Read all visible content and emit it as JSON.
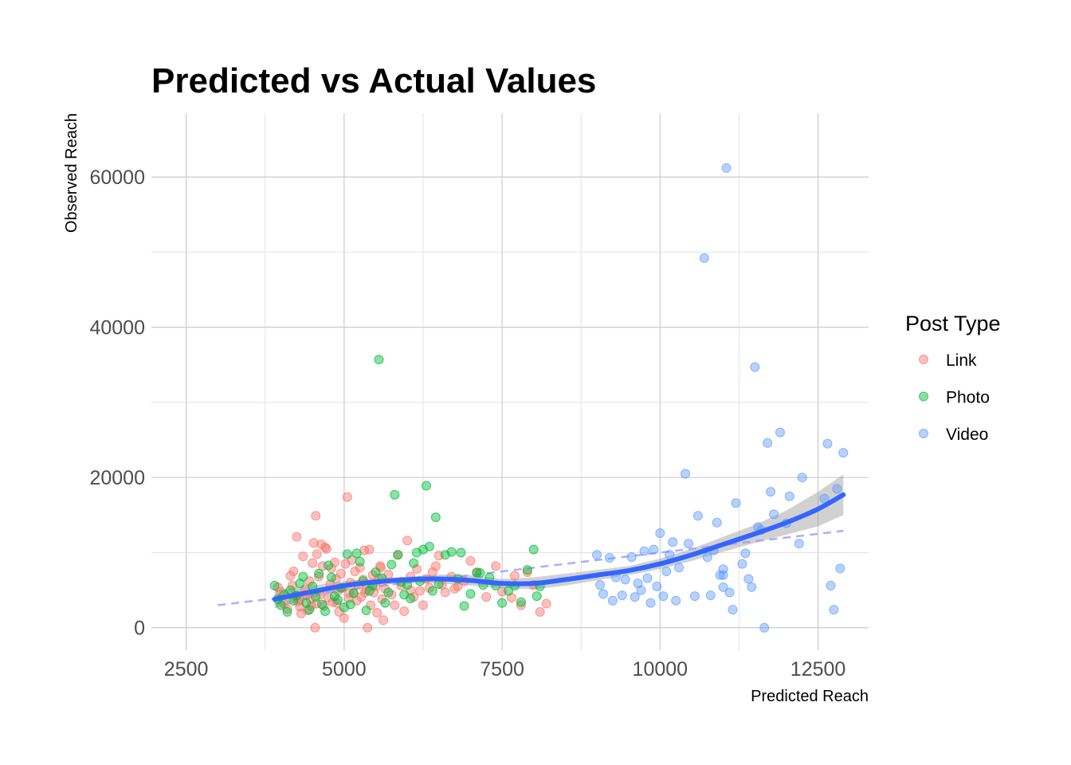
{
  "chart_data": {
    "type": "scatter",
    "title": "Predicted vs Actual Values",
    "xlabel": "Predicted Reach",
    "ylabel": "Observed Reach",
    "xlim": [
      1950,
      13300
    ],
    "ylim": [
      -3000,
      68500
    ],
    "x_ticks": [
      2500,
      5000,
      7500,
      10000,
      12500
    ],
    "y_ticks": [
      0,
      20000,
      40000,
      60000
    ],
    "grid": true,
    "legend": {
      "title": "Post Type",
      "position": "right"
    },
    "colors": {
      "Link": "#F8766D",
      "Photo": "#00BA38",
      "Video": "#619CFF",
      "smooth": "#3366FF",
      "band": "#999999",
      "reference": "#9999FF"
    },
    "series": [
      {
        "name": "Link",
        "points": [
          [
            4000,
            4800
          ],
          [
            4050,
            3200
          ],
          [
            4100,
            2500
          ],
          [
            4150,
            6900
          ],
          [
            4180,
            5600
          ],
          [
            4200,
            7500
          ],
          [
            4220,
            4200
          ],
          [
            4250,
            12100
          ],
          [
            4270,
            3500
          ],
          [
            4300,
            2800
          ],
          [
            4320,
            1900
          ],
          [
            4350,
            9500
          ],
          [
            4380,
            5100
          ],
          [
            4400,
            4300
          ],
          [
            4420,
            2300
          ],
          [
            4450,
            6200
          ],
          [
            4470,
            3800
          ],
          [
            4500,
            8600
          ],
          [
            4520,
            11300
          ],
          [
            4540,
            0
          ],
          [
            4550,
            14900
          ],
          [
            4570,
            9800
          ],
          [
            4600,
            6800
          ],
          [
            4620,
            4400
          ],
          [
            4640,
            11100
          ],
          [
            4660,
            8200
          ],
          [
            4680,
            2900
          ],
          [
            4700,
            10700
          ],
          [
            4720,
            10500
          ],
          [
            4750,
            4000
          ],
          [
            4780,
            5800
          ],
          [
            4800,
            7900
          ],
          [
            4820,
            3400
          ],
          [
            4850,
            8700
          ],
          [
            4870,
            6500
          ],
          [
            4900,
            4900
          ],
          [
            4920,
            2100
          ],
          [
            4950,
            7200
          ],
          [
            4970,
            5300
          ],
          [
            5000,
            1300
          ],
          [
            5020,
            8500
          ],
          [
            5050,
            17400
          ],
          [
            5070,
            3900
          ],
          [
            5100,
            6000
          ],
          [
            5120,
            9000
          ],
          [
            5150,
            4600
          ],
          [
            5170,
            7500
          ],
          [
            5200,
            3600
          ],
          [
            5220,
            5700
          ],
          [
            5250,
            8000
          ],
          [
            5270,
            4100
          ],
          [
            5300,
            6400
          ],
          [
            5320,
            10300
          ],
          [
            5350,
            5100
          ],
          [
            5370,
            0
          ],
          [
            5400,
            10400
          ],
          [
            5420,
            3000
          ],
          [
            5450,
            7000
          ],
          [
            5470,
            4700
          ],
          [
            5500,
            5500
          ],
          [
            5520,
            2000
          ],
          [
            5550,
            6600
          ],
          [
            5570,
            8200
          ],
          [
            5600,
            3800
          ],
          [
            5620,
            1000
          ],
          [
            5650,
            5200
          ],
          [
            5700,
            7100
          ],
          [
            5750,
            4400
          ],
          [
            5800,
            3000
          ],
          [
            5850,
            9700
          ],
          [
            5900,
            5600
          ],
          [
            5950,
            2200
          ],
          [
            6000,
            11600
          ],
          [
            6050,
            6800
          ],
          [
            6100,
            4100
          ],
          [
            6150,
            7800
          ],
          [
            6200,
            4900
          ],
          [
            6250,
            3000
          ],
          [
            6300,
            6500
          ],
          [
            6350,
            5300
          ],
          [
            6400,
            7400
          ],
          [
            6450,
            8200
          ],
          [
            6500,
            9600
          ],
          [
            6550,
            5700
          ],
          [
            6600,
            4700
          ],
          [
            6700,
            6800
          ],
          [
            6800,
            5500
          ],
          [
            6900,
            6200
          ],
          [
            7000,
            8900
          ],
          [
            7100,
            7400
          ],
          [
            7250,
            4100
          ],
          [
            7400,
            8200
          ],
          [
            7500,
            4800
          ],
          [
            7650,
            4000
          ],
          [
            7700,
            6900
          ],
          [
            7800,
            3000
          ],
          [
            7900,
            7400
          ],
          [
            8000,
            5700
          ],
          [
            8100,
            2100
          ],
          [
            8200,
            3200
          ],
          [
            3950,
            5400
          ],
          [
            4300,
            3700
          ],
          [
            4480,
            2900
          ],
          [
            4560,
            3200
          ],
          [
            4880,
            3300
          ],
          [
            5080,
            4600
          ],
          [
            5330,
            4700
          ],
          [
            5580,
            8000
          ],
          [
            6050,
            5000
          ],
          [
            6750,
            5200
          ]
        ]
      },
      {
        "name": "Photo",
        "points": [
          [
            3900,
            5600
          ],
          [
            3950,
            3800
          ],
          [
            4000,
            3000
          ],
          [
            4050,
            4400
          ],
          [
            4100,
            2100
          ],
          [
            4150,
            5000
          ],
          [
            4200,
            3600
          ],
          [
            4250,
            4300
          ],
          [
            4300,
            5900
          ],
          [
            4350,
            6800
          ],
          [
            4400,
            3300
          ],
          [
            4450,
            2400
          ],
          [
            4500,
            5500
          ],
          [
            4550,
            4100
          ],
          [
            4600,
            7200
          ],
          [
            4650,
            3100
          ],
          [
            4700,
            2200
          ],
          [
            4750,
            8300
          ],
          [
            4800,
            6700
          ],
          [
            4850,
            4200
          ],
          [
            4900,
            3700
          ],
          [
            4950,
            5300
          ],
          [
            5000,
            2700
          ],
          [
            5050,
            9800
          ],
          [
            5100,
            3100
          ],
          [
            5150,
            4600
          ],
          [
            5200,
            9900
          ],
          [
            5250,
            8800
          ],
          [
            5300,
            6200
          ],
          [
            5350,
            2300
          ],
          [
            5400,
            4900
          ],
          [
            5450,
            5600
          ],
          [
            5500,
            7400
          ],
          [
            5550,
            35700
          ],
          [
            5600,
            6600
          ],
          [
            5650,
            3300
          ],
          [
            5700,
            4700
          ],
          [
            5750,
            8400
          ],
          [
            5800,
            17700
          ],
          [
            5850,
            9700
          ],
          [
            5900,
            6100
          ],
          [
            5950,
            4400
          ],
          [
            6000,
            5700
          ],
          [
            6050,
            3900
          ],
          [
            6100,
            8600
          ],
          [
            6150,
            10000
          ],
          [
            6200,
            6200
          ],
          [
            6250,
            10400
          ],
          [
            6300,
            18900
          ],
          [
            6350,
            10800
          ],
          [
            6400,
            4900
          ],
          [
            6450,
            14700
          ],
          [
            6500,
            5800
          ],
          [
            6600,
            9700
          ],
          [
            6700,
            10100
          ],
          [
            6800,
            6500
          ],
          [
            6850,
            10000
          ],
          [
            6900,
            2900
          ],
          [
            7000,
            4500
          ],
          [
            7100,
            7300
          ],
          [
            7150,
            7300
          ],
          [
            7200,
            5700
          ],
          [
            7300,
            6700
          ],
          [
            7400,
            5600
          ],
          [
            7500,
            3300
          ],
          [
            7600,
            4900
          ],
          [
            7700,
            5600
          ],
          [
            7800,
            3400
          ],
          [
            7900,
            7700
          ],
          [
            8000,
            10400
          ],
          [
            8050,
            4200
          ],
          [
            8100,
            5500
          ]
        ]
      },
      {
        "name": "Video",
        "points": [
          [
            9000,
            9700
          ],
          [
            9050,
            5700
          ],
          [
            9100,
            4500
          ],
          [
            9200,
            9300
          ],
          [
            9250,
            3600
          ],
          [
            9300,
            6700
          ],
          [
            9400,
            4300
          ],
          [
            9450,
            6400
          ],
          [
            9550,
            9400
          ],
          [
            9600,
            4100
          ],
          [
            9650,
            5900
          ],
          [
            9700,
            5000
          ],
          [
            9750,
            10200
          ],
          [
            9800,
            6600
          ],
          [
            9850,
            3300
          ],
          [
            9900,
            10400
          ],
          [
            9950,
            5500
          ],
          [
            10000,
            12600
          ],
          [
            10050,
            4200
          ],
          [
            10100,
            7500
          ],
          [
            10150,
            9700
          ],
          [
            10200,
            11400
          ],
          [
            10250,
            3600
          ],
          [
            10300,
            8000
          ],
          [
            10400,
            20500
          ],
          [
            10450,
            11200
          ],
          [
            10550,
            4200
          ],
          [
            10600,
            14900
          ],
          [
            10700,
            49200
          ],
          [
            10750,
            9400
          ],
          [
            10800,
            4300
          ],
          [
            10850,
            10300
          ],
          [
            10900,
            14000
          ],
          [
            10950,
            7000
          ],
          [
            11000,
            5400
          ],
          [
            11050,
            61200
          ],
          [
            11100,
            4700
          ],
          [
            11150,
            2400
          ],
          [
            11200,
            16600
          ],
          [
            11300,
            8500
          ],
          [
            11350,
            9900
          ],
          [
            11400,
            6500
          ],
          [
            11450,
            5400
          ],
          [
            11500,
            34700
          ],
          [
            11550,
            13400
          ],
          [
            11600,
            13000
          ],
          [
            11650,
            0
          ],
          [
            11700,
            24600
          ],
          [
            11750,
            18100
          ],
          [
            11800,
            15100
          ],
          [
            11900,
            26000
          ],
          [
            12000,
            13900
          ],
          [
            12050,
            17500
          ],
          [
            12200,
            11200
          ],
          [
            12250,
            20000
          ],
          [
            12600,
            17200
          ],
          [
            12650,
            24500
          ],
          [
            12700,
            5600
          ],
          [
            12750,
            2400
          ],
          [
            12800,
            18500
          ],
          [
            12850,
            7900
          ],
          [
            12900,
            23300
          ],
          [
            11000,
            7800
          ],
          [
            11000,
            7000
          ]
        ]
      }
    ],
    "smooth_line": {
      "method": "loess",
      "x": [
        3900,
        4500,
        5000,
        5500,
        6000,
        6500,
        7000,
        7500,
        8000,
        8500,
        9000,
        9500,
        10000,
        10500,
        11000,
        11500,
        12000,
        12500,
        12900
      ],
      "y": [
        3800,
        4800,
        5600,
        6100,
        6400,
        6500,
        6300,
        5900,
        5900,
        6400,
        7000,
        7600,
        8500,
        9700,
        11100,
        12500,
        14000,
        15800,
        17700
      ],
      "band_lower": [
        2600,
        4000,
        5000,
        5600,
        6000,
        5900,
        5600,
        5300,
        5100,
        5600,
        6300,
        7000,
        7800,
        8900,
        10100,
        11300,
        12400,
        13500,
        15000
      ],
      "band_upper": [
        5000,
        5600,
        6200,
        6600,
        6800,
        7100,
        7000,
        6500,
        6700,
        7200,
        7700,
        8200,
        9200,
        10500,
        12100,
        13700,
        15600,
        18100,
        20400
      ]
    },
    "reference_line": {
      "style": "dashed",
      "x": [
        3000,
        12900
      ],
      "y": [
        3000,
        12900
      ]
    }
  }
}
